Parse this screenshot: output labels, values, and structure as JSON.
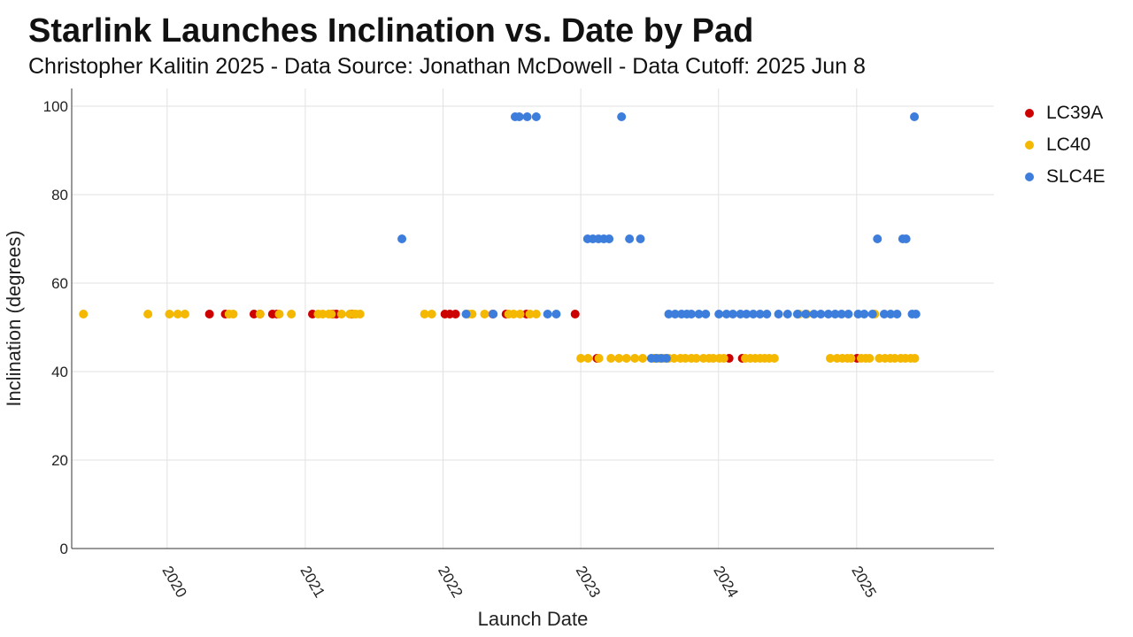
{
  "header": {
    "title": "Starlink Launches Inclination vs. Date by Pad",
    "subtitle": "Christopher Kalitin 2025 - Data Source: Jonathan McDowell - Data Cutoff: 2025 Jun 8"
  },
  "legend": {
    "items": [
      {
        "label": "LC39A",
        "color": "#cc0000"
      },
      {
        "label": "LC40",
        "color": "#f5b800"
      },
      {
        "label": "SLC4E",
        "color": "#3d7ddb"
      }
    ]
  },
  "chart_data": {
    "type": "scatter",
    "title": "Starlink Launches Inclination vs. Date by Pad",
    "subtitle": "Christopher Kalitin 2025 - Data Source: Jonathan McDowell - Data Cutoff: 2025 Jun 8",
    "xlabel": "Launch Date",
    "ylabel": "Inclination (degrees)",
    "xlim": [
      "2019-04-23",
      "2025-12-31"
    ],
    "ylim": [
      0,
      104
    ],
    "x_ticks": [
      "2020",
      "2021",
      "2022",
      "2023",
      "2024",
      "2025"
    ],
    "y_ticks": [
      0,
      20,
      40,
      60,
      80,
      100
    ],
    "grid": true,
    "legend_position": "top-right",
    "series": [
      {
        "name": "LC39A",
        "color": "#cc0000",
        "points": [
          [
            "2020-04-22",
            53
          ],
          [
            "2020-06-03",
            53
          ],
          [
            "2020-08-18",
            53
          ],
          [
            "2020-09-03",
            53
          ],
          [
            "2020-10-06",
            53
          ],
          [
            "2020-10-18",
            53
          ],
          [
            "2021-01-20",
            53
          ],
          [
            "2021-03-14",
            53
          ],
          [
            "2021-03-24",
            53
          ],
          [
            "2021-05-04",
            53
          ],
          [
            "2022-01-06",
            53
          ],
          [
            "2022-01-19",
            53
          ],
          [
            "2022-02-03",
            53
          ],
          [
            "2022-05-13",
            53
          ],
          [
            "2022-06-17",
            53
          ],
          [
            "2022-08-10",
            53
          ],
          [
            "2022-12-17",
            53
          ],
          [
            "2023-02-13",
            43
          ],
          [
            "2024-01-29",
            43
          ],
          [
            "2024-03-04",
            43
          ],
          [
            "2025-01-02",
            43
          ]
        ]
      },
      {
        "name": "LC40",
        "color": "#f5b800",
        "points": [
          [
            "2019-05-24",
            53
          ],
          [
            "2019-11-11",
            53
          ],
          [
            "2020-01-07",
            53
          ],
          [
            "2020-01-29",
            53
          ],
          [
            "2020-02-17",
            53
          ],
          [
            "2020-06-13",
            53
          ],
          [
            "2020-06-24",
            53
          ],
          [
            "2020-09-03",
            53
          ],
          [
            "2020-10-24",
            53
          ],
          [
            "2020-11-25",
            53
          ],
          [
            "2021-02-04",
            53
          ],
          [
            "2021-02-16",
            53
          ],
          [
            "2021-03-04",
            53
          ],
          [
            "2021-03-11",
            53
          ],
          [
            "2021-04-07",
            53
          ],
          [
            "2021-04-29",
            53
          ],
          [
            "2021-05-09",
            53
          ],
          [
            "2021-05-15",
            53
          ],
          [
            "2021-05-26",
            53
          ],
          [
            "2021-11-13",
            53
          ],
          [
            "2021-12-02",
            53
          ],
          [
            "2022-03-09",
            53
          ],
          [
            "2022-03-19",
            53
          ],
          [
            "2022-04-21",
            53
          ],
          [
            "2022-06-24",
            53
          ],
          [
            "2022-07-07",
            53
          ],
          [
            "2022-07-24",
            53
          ],
          [
            "2022-08-19",
            53
          ],
          [
            "2022-09-05",
            53
          ],
          [
            "2023-01-01",
            43
          ],
          [
            "2023-01-20",
            43
          ],
          [
            "2023-02-18",
            43
          ],
          [
            "2023-03-22",
            43
          ],
          [
            "2023-04-12",
            43
          ],
          [
            "2023-05-02",
            43
          ],
          [
            "2023-05-24",
            43
          ],
          [
            "2023-06-14",
            43
          ],
          [
            "2023-07-14",
            43
          ],
          [
            "2023-07-26",
            43
          ],
          [
            "2023-08-08",
            43
          ],
          [
            "2023-08-22",
            43
          ],
          [
            "2023-09-05",
            43
          ],
          [
            "2023-09-22",
            43
          ],
          [
            "2023-10-05",
            43
          ],
          [
            "2023-10-21",
            43
          ],
          [
            "2023-11-03",
            43
          ],
          [
            "2023-11-22",
            43
          ],
          [
            "2023-12-07",
            43
          ],
          [
            "2023-12-18",
            43
          ],
          [
            "2024-01-03",
            43
          ],
          [
            "2024-01-15",
            43
          ],
          [
            "2024-03-12",
            43
          ],
          [
            "2024-03-25",
            43
          ],
          [
            "2024-04-07",
            43
          ],
          [
            "2024-04-20",
            43
          ],
          [
            "2024-05-02",
            43
          ],
          [
            "2024-05-14",
            43
          ],
          [
            "2024-05-28",
            43
          ],
          [
            "2024-08-01",
            53
          ],
          [
            "2024-08-22",
            53
          ],
          [
            "2024-10-23",
            43
          ],
          [
            "2024-11-10",
            43
          ],
          [
            "2024-11-24",
            43
          ],
          [
            "2024-12-07",
            43
          ],
          [
            "2024-12-17",
            43
          ],
          [
            "2025-01-13",
            43
          ],
          [
            "2025-01-25",
            43
          ],
          [
            "2025-02-04",
            43
          ],
          [
            "2025-02-18",
            53
          ],
          [
            "2025-03-02",
            43
          ],
          [
            "2025-03-17",
            43
          ],
          [
            "2025-03-31",
            43
          ],
          [
            "2025-04-12",
            43
          ],
          [
            "2025-04-28",
            43
          ],
          [
            "2025-05-10",
            43
          ],
          [
            "2025-05-24",
            43
          ],
          [
            "2025-06-04",
            43
          ]
        ]
      },
      {
        "name": "SLC4E",
        "color": "#3d7ddb",
        "points": [
          [
            "2021-09-14",
            70
          ],
          [
            "2022-03-03",
            53
          ],
          [
            "2022-05-14",
            53
          ],
          [
            "2022-07-11",
            97.6
          ],
          [
            "2022-07-22",
            97.6
          ],
          [
            "2022-08-12",
            97.6
          ],
          [
            "2022-09-05",
            97.6
          ],
          [
            "2022-10-05",
            53
          ],
          [
            "2022-10-28",
            53
          ],
          [
            "2023-01-19",
            70
          ],
          [
            "2023-02-02",
            70
          ],
          [
            "2023-02-17",
            70
          ],
          [
            "2023-03-03",
            70
          ],
          [
            "2023-03-17",
            70
          ],
          [
            "2023-04-19",
            97.6
          ],
          [
            "2023-05-10",
            70
          ],
          [
            "2023-06-08",
            70
          ],
          [
            "2023-07-07",
            43
          ],
          [
            "2023-07-20",
            43
          ],
          [
            "2023-08-02",
            43
          ],
          [
            "2023-08-16",
            43
          ],
          [
            "2023-08-22",
            53
          ],
          [
            "2023-09-08",
            53
          ],
          [
            "2023-09-25",
            53
          ],
          [
            "2023-10-09",
            53
          ],
          [
            "2023-10-21",
            53
          ],
          [
            "2023-11-10",
            53
          ],
          [
            "2023-11-28",
            53
          ],
          [
            "2024-01-02",
            53
          ],
          [
            "2024-01-22",
            53
          ],
          [
            "2024-02-08",
            53
          ],
          [
            "2024-02-28",
            53
          ],
          [
            "2024-03-15",
            53
          ],
          [
            "2024-04-02",
            53
          ],
          [
            "2024-04-20",
            53
          ],
          [
            "2024-05-08",
            53
          ],
          [
            "2024-06-08",
            53
          ],
          [
            "2024-07-02",
            53
          ],
          [
            "2024-07-28",
            53
          ],
          [
            "2024-08-19",
            53
          ],
          [
            "2024-09-10",
            53
          ],
          [
            "2024-09-28",
            53
          ],
          [
            "2024-10-18",
            53
          ],
          [
            "2024-11-05",
            53
          ],
          [
            "2024-11-22",
            53
          ],
          [
            "2024-12-10",
            53
          ],
          [
            "2025-01-05",
            53
          ],
          [
            "2025-01-21",
            53
          ],
          [
            "2025-02-12",
            53
          ],
          [
            "2025-02-25",
            70
          ],
          [
            "2025-03-15",
            53
          ],
          [
            "2025-04-01",
            53
          ],
          [
            "2025-04-18",
            53
          ],
          [
            "2025-05-03",
            70
          ],
          [
            "2025-05-12",
            70
          ],
          [
            "2025-05-28",
            53
          ],
          [
            "2025-06-03",
            97.6
          ],
          [
            "2025-06-07",
            53
          ]
        ]
      }
    ]
  }
}
